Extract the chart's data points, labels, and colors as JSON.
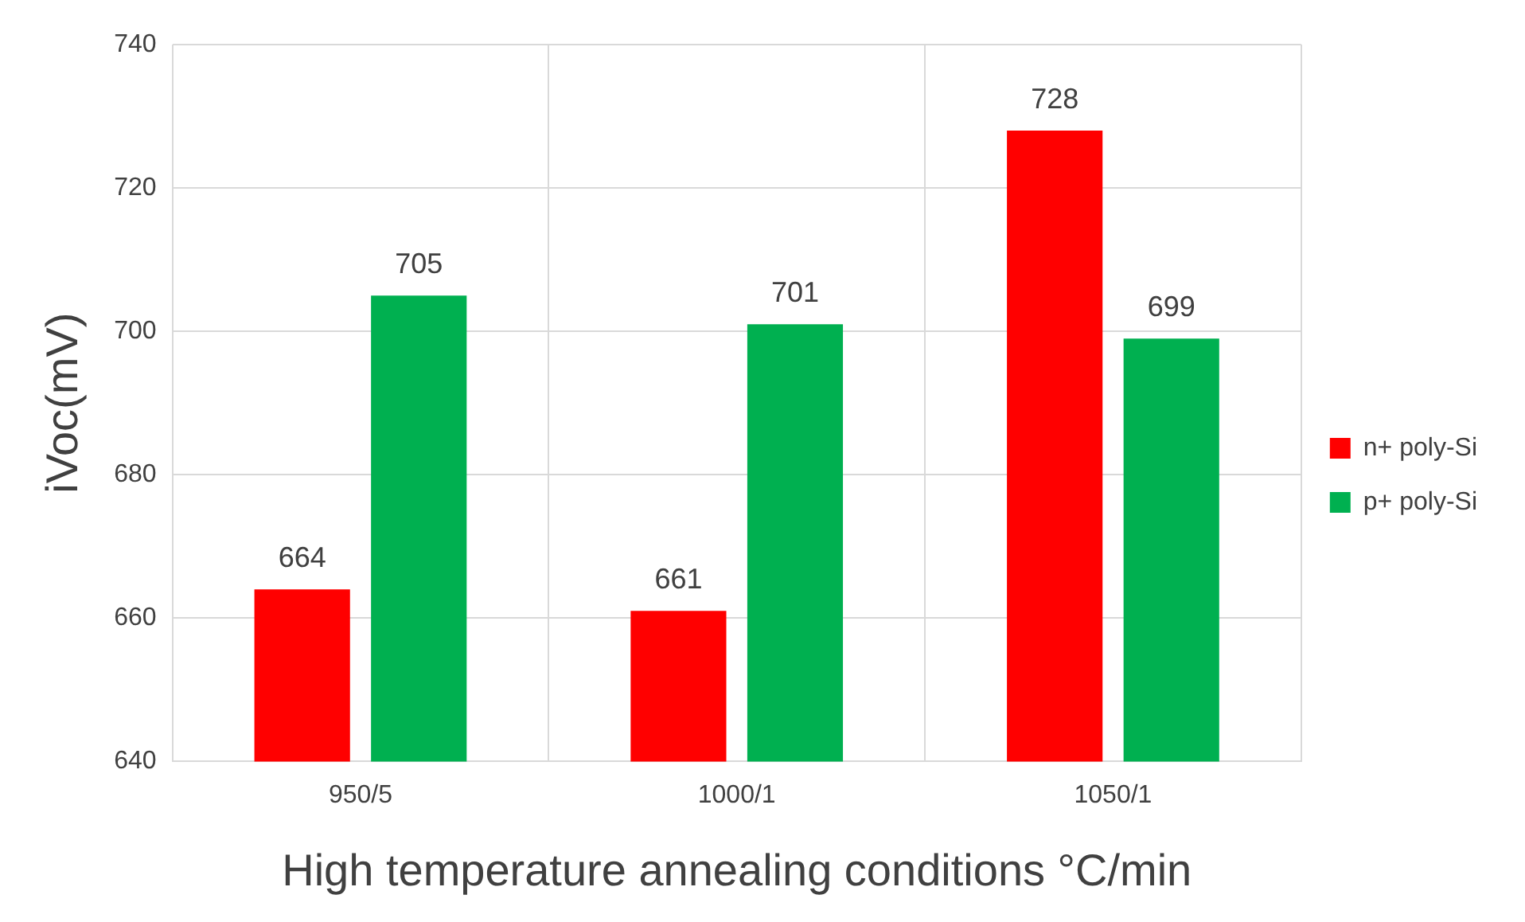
{
  "chart_data": {
    "type": "bar",
    "xlabel": "High temperature annealing conditions °C/min",
    "ylabel": "iVoc(mV)",
    "categories": [
      "950/5",
      "1000/1",
      "1050/1"
    ],
    "series": [
      {
        "name": "n+ poly-Si",
        "color": "#ff0000",
        "values": [
          664,
          661,
          728
        ]
      },
      {
        "name": "p+ poly-Si",
        "color": "#00b050",
        "values": [
          705,
          701,
          699
        ]
      }
    ],
    "ylim": [
      640,
      740
    ],
    "yticks": [
      640,
      660,
      680,
      700,
      720,
      740
    ],
    "grid": true,
    "legend": "right",
    "data_labels": true
  }
}
